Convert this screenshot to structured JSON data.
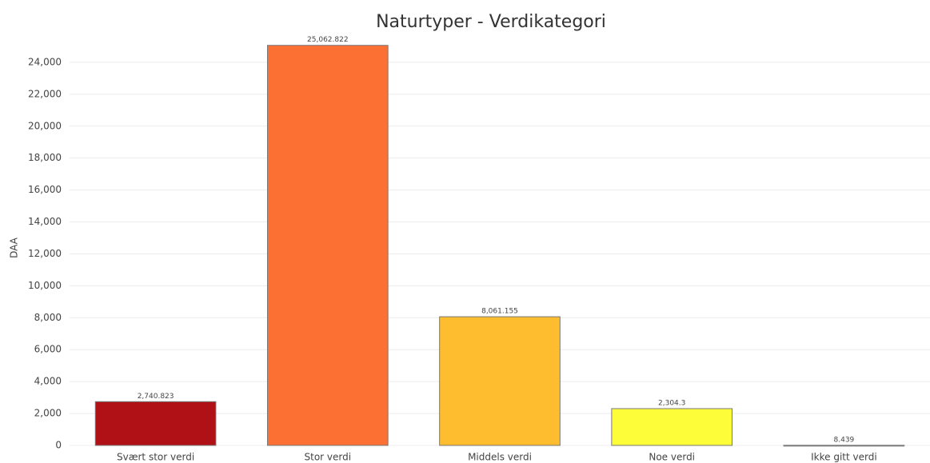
{
  "chart_data": {
    "type": "bar",
    "title": "Naturtyper - Verdikategori",
    "y_label": "DAA",
    "categories": [
      "Svært stor verdi",
      "Stor verdi",
      "Middels verdi",
      "Noe verdi",
      "Ikke gitt verdi"
    ],
    "values": [
      2740.823,
      25062.822,
      8061.155,
      2304.3,
      8.439
    ],
    "value_labels": [
      "2,740.823",
      "25,062.822",
      "8,061.155",
      "2,304.3",
      "8.439"
    ],
    "colors": [
      "#b01116",
      "#fd7034",
      "#fdbd2e",
      "#fdfd3a",
      "#c8c8c8"
    ],
    "ylim": [
      0,
      26000
    ],
    "yticks": [
      0,
      {
        "value": 2000,
        "label": "2,000"
      },
      {
        "value": 4000,
        "label": "4,000"
      },
      {
        "value": 6000,
        "label": "6,000"
      },
      {
        "value": 8000,
        "label": "8,000"
      },
      {
        "value": 10000,
        "label": "10,000"
      },
      {
        "value": 12000,
        "label": "12,000"
      },
      {
        "value": 14000,
        "label": "14,000"
      },
      {
        "value": 16000,
        "label": "16,000"
      },
      {
        "value": 18000,
        "label": "18,000"
      },
      {
        "value": 20000,
        "label": "20,000"
      },
      {
        "value": 22000,
        "label": "22,000"
      },
      {
        "value": 24000,
        "label": "24,000"
      }
    ],
    "grid": true
  }
}
